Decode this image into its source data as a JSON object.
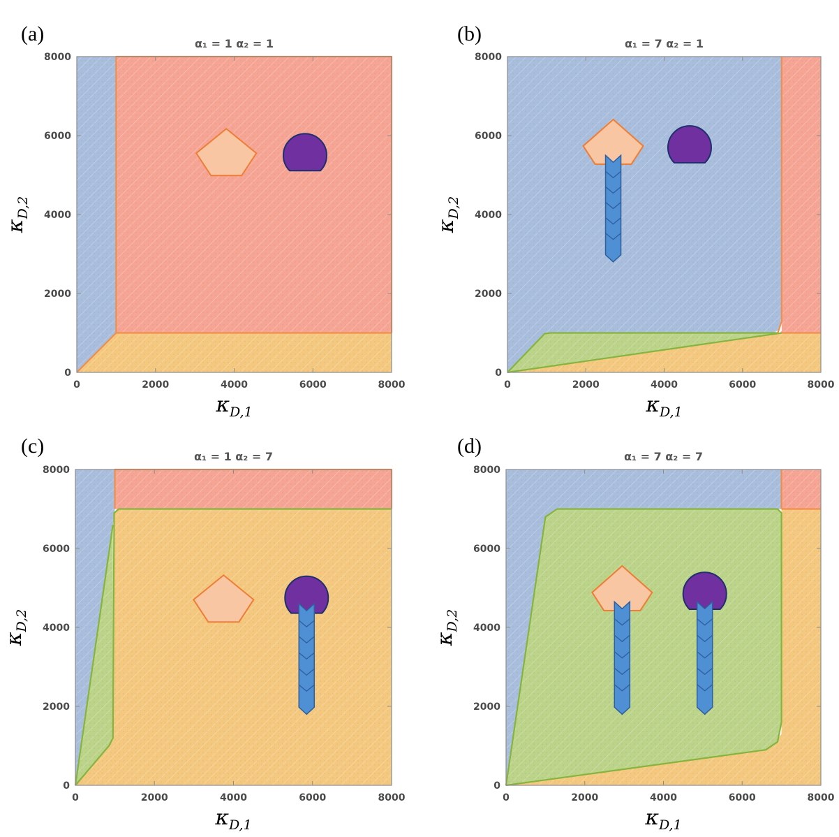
{
  "chart_data": [
    {
      "panel_label": "(a)",
      "type": "area",
      "title": "α₁ = 1 α₂ = 1",
      "xlabel": "κ",
      "xlabel_sub": "D,1",
      "ylabel": "κ",
      "ylabel_sub": "D,2",
      "xlim": [
        0,
        8000
      ],
      "ylim": [
        0,
        8000
      ],
      "xticks": [
        0,
        2000,
        4000,
        6000,
        8000
      ],
      "yticks": [
        0,
        2000,
        4000,
        6000,
        8000
      ],
      "regions": [
        {
          "color": "#f4c97f",
          "points": [
            [
              0,
              0
            ],
            [
              8000,
              0
            ],
            [
              8000,
              1000
            ],
            [
              1000,
              1000
            ]
          ]
        },
        {
          "color": "#f6a595",
          "points": [
            [
              1000,
              1000
            ],
            [
              8000,
              1000
            ],
            [
              8000,
              8000
            ],
            [
              1000,
              8000
            ]
          ]
        },
        {
          "color": "#a9bedd",
          "points": [
            [
              0,
              0
            ],
            [
              1000,
              1000
            ],
            [
              1000,
              8000
            ],
            [
              0,
              8000
            ]
          ]
        }
      ],
      "boundaries": [
        {
          "color": "#f08f4b",
          "points": [
            [
              0,
              0
            ],
            [
              1000,
              1000
            ],
            [
              8000,
              1000
            ]
          ]
        },
        {
          "color": "#f08f4b",
          "points": [
            [
              1000,
              1000
            ],
            [
              1000,
              8000
            ],
            [
              8000,
              8000
            ],
            [
              8000,
              1000
            ]
          ]
        }
      ],
      "markers": [
        {
          "shape": "pentagon",
          "x": 3800,
          "y": 5500
        },
        {
          "shape": "circle",
          "x": 5800,
          "y": 5500
        }
      ],
      "arrows": []
    },
    {
      "panel_label": "(b)",
      "type": "area",
      "title": "α₁ = 7 α₂ = 1",
      "xlabel": "κ",
      "xlabel_sub": "D,1",
      "ylabel": "κ",
      "ylabel_sub": "D,2",
      "xlim": [
        0,
        8000
      ],
      "ylim": [
        0,
        8000
      ],
      "xticks": [
        0,
        2000,
        4000,
        6000,
        8000
      ],
      "yticks": [
        0,
        2000,
        4000,
        6000,
        8000
      ],
      "regions": [
        {
          "color": "#f4c97f",
          "points": [
            [
              0,
              0
            ],
            [
              8000,
              0
            ],
            [
              8000,
              1000
            ],
            [
              7000,
              1000
            ]
          ]
        },
        {
          "color": "#f6a595",
          "points": [
            [
              6950,
              1000
            ],
            [
              7000,
              1050
            ],
            [
              7000,
              8000
            ],
            [
              8000,
              8000
            ],
            [
              8000,
              1000
            ]
          ]
        },
        {
          "color": "#bcd38a",
          "points": [
            [
              0,
              0
            ],
            [
              7000,
              1000
            ],
            [
              1100,
              1000
            ],
            [
              950,
              980
            ],
            [
              0,
              0
            ]
          ]
        },
        {
          "color": "#a9bedd",
          "points": [
            [
              0,
              0
            ],
            [
              950,
              980
            ],
            [
              1100,
              1000
            ],
            [
              6800,
              1000
            ],
            [
              6950,
              1100
            ],
            [
              7000,
              1500
            ],
            [
              7000,
              8000
            ],
            [
              0,
              8000
            ]
          ]
        }
      ],
      "boundaries": [
        {
          "color": "#86b43e",
          "points": [
            [
              0,
              0
            ],
            [
              950,
              980
            ],
            [
              1100,
              1000
            ],
            [
              6900,
              1000
            ]
          ]
        },
        {
          "color": "#86b43e",
          "points": [
            [
              0,
              0
            ],
            [
              7000,
              1000
            ]
          ]
        },
        {
          "color": "#f08f4b",
          "points": [
            [
              6900,
              1000
            ],
            [
              7000,
              1300
            ],
            [
              7000,
              8000
            ]
          ]
        },
        {
          "color": "#f08f4b",
          "points": [
            [
              7000,
              1000
            ],
            [
              8000,
              1000
            ]
          ]
        }
      ],
      "markers": [
        {
          "shape": "diamond",
          "x": 2700,
          "y": 5700
        },
        {
          "shape": "circle",
          "x": 4650,
          "y": 5700
        }
      ],
      "arrows": [
        {
          "x": 2700,
          "y_top": 5500,
          "y_bottom": 2800
        }
      ]
    },
    {
      "panel_label": "(c)",
      "type": "area",
      "title": "α₁ = 1 α₂ = 7",
      "xlabel": "κ",
      "xlabel_sub": "D,1",
      "ylabel": "κ",
      "ylabel_sub": "D,2",
      "xlim": [
        0,
        8000
      ],
      "ylim": [
        0,
        8000
      ],
      "xticks": [
        0,
        2000,
        4000,
        6000,
        8000
      ],
      "yticks": [
        0,
        2000,
        4000,
        6000,
        8000
      ],
      "regions": [
        {
          "color": "#f6a595",
          "points": [
            [
              950,
              7000
            ],
            [
              1000,
              8000
            ],
            [
              8000,
              8000
            ],
            [
              8000,
              7000
            ]
          ]
        },
        {
          "color": "#f4c97f",
          "points": [
            [
              0,
              0
            ],
            [
              8000,
              0
            ],
            [
              8000,
              7000
            ],
            [
              1050,
              7000
            ],
            [
              980,
              6900
            ],
            [
              950,
              1200
            ],
            [
              850,
              1000
            ]
          ]
        },
        {
          "color": "#bcd38a",
          "points": [
            [
              0,
              0
            ],
            [
              850,
              1000
            ],
            [
              950,
              1200
            ],
            [
              950,
              6600
            ],
            [
              0,
              0
            ]
          ]
        },
        {
          "color": "#a9bedd",
          "points": [
            [
              0,
              0
            ],
            [
              950,
              6600
            ],
            [
              1000,
              7000
            ],
            [
              1000,
              8000
            ],
            [
              0,
              8000
            ]
          ]
        }
      ],
      "boundaries": [
        {
          "color": "#86b43e",
          "points": [
            [
              0,
              0
            ],
            [
              850,
              1000
            ],
            [
              950,
              1200
            ],
            [
              980,
              6900
            ],
            [
              1100,
              7000
            ],
            [
              8000,
              7000
            ]
          ]
        },
        {
          "color": "#86b43e",
          "points": [
            [
              0,
              0
            ],
            [
              950,
              6600
            ]
          ]
        },
        {
          "color": "#f08f4b",
          "points": [
            [
              1000,
              7000
            ],
            [
              1000,
              8000
            ],
            [
              8000,
              8000
            ],
            [
              8000,
              7000
            ]
          ]
        }
      ],
      "markers": [
        {
          "shape": "pentagon",
          "x": 3750,
          "y": 4650
        },
        {
          "shape": "circle",
          "x": 5850,
          "y": 4750
        }
      ],
      "arrows": [
        {
          "x": 5850,
          "y_top": 4600,
          "y_bottom": 1800
        }
      ]
    },
    {
      "panel_label": "(d)",
      "type": "area",
      "title": "α₁ = 7 α₂ = 7",
      "xlabel": "κ",
      "xlabel_sub": "D,1",
      "ylabel": "κ",
      "ylabel_sub": "D,2",
      "xlim": [
        0,
        8000
      ],
      "ylim": [
        0,
        8000
      ],
      "xticks": [
        0,
        2000,
        4000,
        6000,
        8000
      ],
      "yticks": [
        0,
        2000,
        4000,
        6000,
        8000
      ],
      "regions": [
        {
          "color": "#f6a595",
          "points": [
            [
              7000,
              7000
            ],
            [
              7000,
              8000
            ],
            [
              8000,
              8000
            ],
            [
              8000,
              7000
            ]
          ]
        },
        {
          "color": "#f4c97f",
          "points": [
            [
              0,
              0
            ],
            [
              8000,
              0
            ],
            [
              8000,
              7000
            ],
            [
              7000,
              7000
            ],
            [
              7000,
              1300
            ],
            [
              6800,
              1000
            ],
            [
              0,
              0
            ]
          ]
        },
        {
          "color": "#a9bedd",
          "points": [
            [
              0,
              0
            ],
            [
              1000,
              6700
            ],
            [
              1300,
              7000
            ],
            [
              7000,
              7000
            ],
            [
              7000,
              8000
            ],
            [
              0,
              8000
            ]
          ]
        },
        {
          "color": "#bcd38a",
          "points": [
            [
              0,
              0
            ],
            [
              6600,
              900
            ],
            [
              6900,
              1100
            ],
            [
              7000,
              1600
            ],
            [
              7000,
              6900
            ],
            [
              6900,
              7000
            ],
            [
              1300,
              7000
            ],
            [
              1000,
              6800
            ],
            [
              0,
              0
            ]
          ]
        }
      ],
      "boundaries": [
        {
          "color": "#86b43e",
          "points": [
            [
              0,
              0
            ],
            [
              6600,
              900
            ],
            [
              6900,
              1100
            ],
            [
              7000,
              1600
            ],
            [
              7000,
              6900
            ],
            [
              6900,
              7000
            ],
            [
              1300,
              7000
            ],
            [
              1000,
              6800
            ],
            [
              0,
              0
            ]
          ]
        },
        {
          "color": "#f08f4b",
          "points": [
            [
              7000,
              7000
            ],
            [
              8000,
              7000
            ]
          ]
        },
        {
          "color": "#f08f4b",
          "points": [
            [
              7000,
              7000
            ],
            [
              7000,
              8000
            ]
          ]
        }
      ],
      "markers": [
        {
          "shape": "diamond",
          "x": 2950,
          "y": 4850
        },
        {
          "shape": "circle",
          "x": 5050,
          "y": 4850
        }
      ],
      "arrows": [
        {
          "x": 2950,
          "y_top": 4650,
          "y_bottom": 1800
        },
        {
          "x": 5050,
          "y_top": 4650,
          "y_bottom": 1800
        }
      ]
    }
  ],
  "colors": {
    "frame": "#8c8c8c",
    "marker_peach": "#f9c6a4",
    "marker_peach_edge": "#ee7d36",
    "marker_purple": "#7030a0",
    "marker_purple_edge": "#1f2f6b",
    "arrow_fill": "#4f8fd3",
    "arrow_edge": "#2e5f9e"
  }
}
